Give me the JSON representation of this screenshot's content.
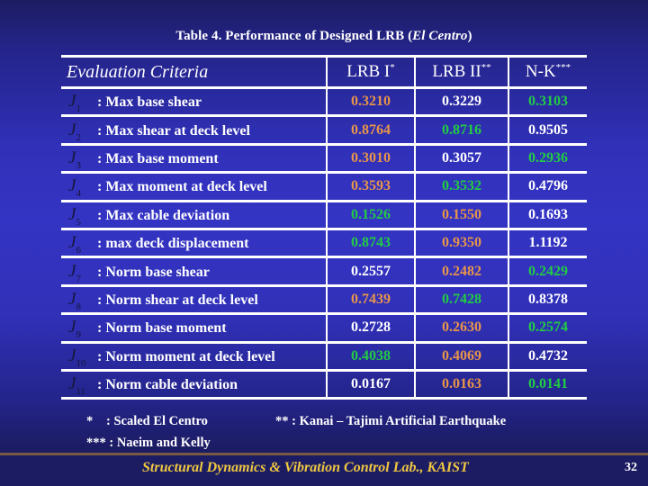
{
  "title": {
    "prefix": "Table 4. Performance of Designed LRB (",
    "italic": "El Centro",
    "suffix": ")"
  },
  "table": {
    "headers": {
      "criteria": "Evaluation Criteria",
      "lrb1": "LRB I",
      "lrb1_mark": "*",
      "lrb2": "LRB II",
      "lrb2_mark": "**",
      "nk": "N-K",
      "nk_mark": "***"
    },
    "colors": {
      "min": "#22cc44",
      "mid": "#e8954a",
      "max": "#ffffff"
    },
    "rows": [
      {
        "symbol": "J",
        "index": "1",
        "label": ": Max base shear",
        "values": [
          "0.3210",
          "0.3229",
          "0.3103"
        ],
        "colors": [
          "mid",
          "max",
          "min"
        ]
      },
      {
        "symbol": "J",
        "index": "2",
        "label": ": Max shear at deck level",
        "values": [
          "0.8764",
          "0.8716",
          "0.9505"
        ],
        "colors": [
          "mid",
          "min",
          "max"
        ]
      },
      {
        "symbol": "J",
        "index": "3",
        "label": ": Max base moment",
        "values": [
          "0.3010",
          "0.3057",
          "0.2936"
        ],
        "colors": [
          "mid",
          "max",
          "min"
        ]
      },
      {
        "symbol": "J",
        "index": "4",
        "label": ": Max moment at deck level",
        "values": [
          "0.3593",
          "0.3532",
          "0.4796"
        ],
        "colors": [
          "mid",
          "min",
          "max"
        ]
      },
      {
        "symbol": "J",
        "index": "5",
        "label": ": Max cable deviation",
        "values": [
          "0.1526",
          "0.1550",
          "0.1693"
        ],
        "colors": [
          "min",
          "mid",
          "max"
        ]
      },
      {
        "symbol": "J",
        "index": "6",
        "label": ": max deck displacement",
        "values": [
          "0.8743",
          "0.9350",
          "1.1192"
        ],
        "colors": [
          "min",
          "mid",
          "max"
        ]
      },
      {
        "symbol": "J",
        "index": "7",
        "label": ": Norm base shear",
        "values": [
          "0.2557",
          "0.2482",
          "0.2429"
        ],
        "colors": [
          "max",
          "mid",
          "min"
        ]
      },
      {
        "symbol": "J",
        "index": "8",
        "label": ": Norm shear at deck level",
        "values": [
          "0.7439",
          "0.7428",
          "0.8378"
        ],
        "colors": [
          "mid",
          "min",
          "max"
        ]
      },
      {
        "symbol": "J",
        "index": "9",
        "label": ": Norm base moment",
        "values": [
          "0.2728",
          "0.2630",
          "0.2574"
        ],
        "colors": [
          "max",
          "mid",
          "min"
        ]
      },
      {
        "symbol": "J",
        "index": "10",
        "label": ": Norm moment at deck level",
        "values": [
          "0.4038",
          "0.4069",
          "0.4732"
        ],
        "colors": [
          "min",
          "mid",
          "max"
        ]
      },
      {
        "symbol": "J",
        "index": "11",
        "label": ": Norm cable deviation",
        "values": [
          "0.0167",
          "0.0163",
          "0.0141"
        ],
        "colors": [
          "max",
          "mid",
          "min"
        ]
      }
    ]
  },
  "notes": {
    "n1_mark": "*",
    "n1_text": ": Scaled El Centro",
    "n2_text": "** : Kanai – Tajimi Artificial Earthquake",
    "n3_text": "*** : Naeim and Kelly"
  },
  "footer": {
    "lab": "Structural Dynamics & Vibration Control Lab., KAIST",
    "page": "32",
    "line_color": "#7a5a42",
    "text_color": "#f0c840"
  }
}
